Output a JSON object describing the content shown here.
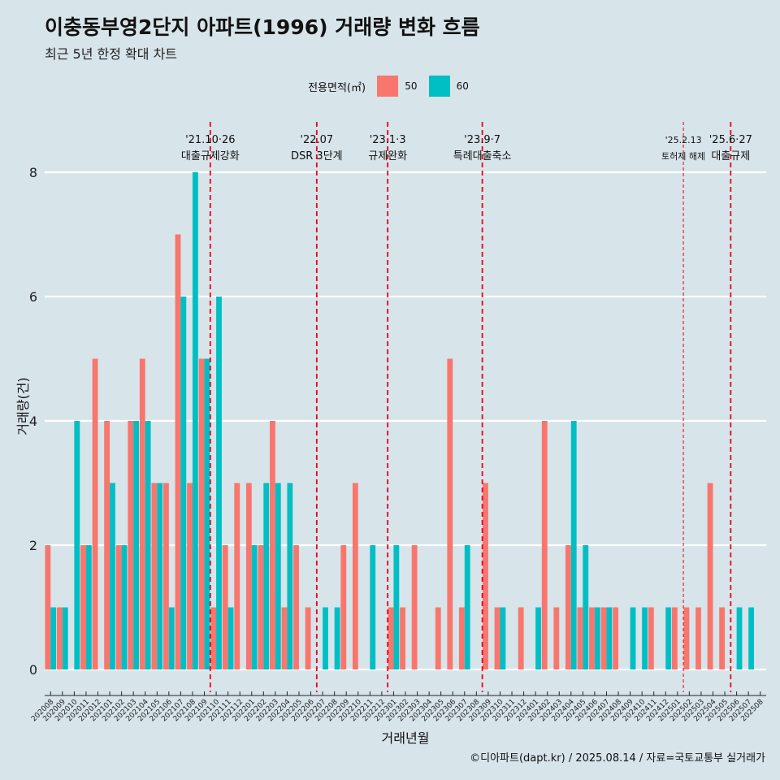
{
  "title": "이충동부영2단지 아파트(1996) 거래량 변화 흐름",
  "subtitle": "최근 5년 한정 확대 차트",
  "footer": "©디아파트(dapt.kr) / 2025.08.14 / 자료=국토교통부 실거래가",
  "colors": {
    "background": "#d7e4ea",
    "series_50": "#f8766d",
    "series_60": "#00bfc4",
    "event_line": "#e8001c",
    "grid": "#ffffff"
  },
  "chart_data": {
    "type": "bar",
    "ylabel": "거래량(건)",
    "xlabel": "거래년월",
    "ylim": [
      0,
      8
    ],
    "yticks": [
      0,
      2,
      4,
      6,
      8
    ],
    "legend_title": "전용면적(㎡)",
    "legend_position": "top",
    "categories": [
      "202008",
      "202009",
      "202010",
      "202011",
      "202012",
      "202101",
      "202102",
      "202103",
      "202104",
      "202105",
      "202106",
      "202107",
      "202108",
      "202109",
      "202110",
      "202111",
      "202112",
      "202201",
      "202202",
      "202203",
      "202204",
      "202205",
      "202206",
      "202207",
      "202208",
      "202209",
      "202210",
      "202211",
      "202212",
      "202301",
      "202302",
      "202303",
      "202304",
      "202305",
      "202306",
      "202307",
      "202308",
      "202309",
      "202310",
      "202311",
      "202312",
      "202401",
      "202402",
      "202403",
      "202404",
      "202405",
      "202406",
      "202407",
      "202408",
      "202409",
      "202410",
      "202411",
      "202412",
      "202501",
      "202502",
      "202503",
      "202504",
      "202505",
      "202506",
      "202507",
      "202508"
    ],
    "series": [
      {
        "name": "50",
        "values": [
          2,
          1,
          0,
          2,
          5,
          4,
          2,
          4,
          5,
          3,
          3,
          7,
          3,
          5,
          1,
          2,
          3,
          3,
          2,
          4,
          1,
          2,
          1,
          0,
          0,
          2,
          3,
          0,
          0,
          1,
          1,
          2,
          0,
          1,
          5,
          1,
          0,
          3,
          1,
          0,
          1,
          0,
          4,
          1,
          2,
          1,
          1,
          1,
          1,
          0,
          0,
          1,
          0,
          1,
          1,
          1,
          3,
          1,
          0,
          0,
          0
        ]
      },
      {
        "name": "60",
        "values": [
          1,
          1,
          4,
          2,
          0,
          3,
          2,
          4,
          4,
          3,
          1,
          6,
          8,
          5,
          6,
          1,
          0,
          2,
          3,
          3,
          3,
          0,
          0,
          1,
          1,
          0,
          0,
          2,
          0,
          2,
          0,
          0,
          0,
          0,
          0,
          2,
          0,
          0,
          1,
          0,
          0,
          1,
          0,
          0,
          4,
          2,
          1,
          1,
          0,
          1,
          1,
          0,
          1,
          0,
          0,
          0,
          0,
          0,
          1,
          1,
          0
        ]
      }
    ],
    "events": [
      {
        "date_label": "'21.10·26",
        "desc": "대출규제강화",
        "x_index": 14.0,
        "style": "dashed"
      },
      {
        "date_label": "'22.07",
        "desc": "DSR 3단계",
        "x_index": 23.0,
        "style": "dashed"
      },
      {
        "date_label": "'23.1·3",
        "desc": "규제완화",
        "x_index": 29.0,
        "style": "dashed"
      },
      {
        "date_label": "'23.9·7",
        "desc": "특례대출축소",
        "x_index": 37.0,
        "style": "dashed"
      },
      {
        "date_label": "'25.2.13",
        "desc": "토허제 해제",
        "x_index": 54.0,
        "style": "dashed-thin"
      },
      {
        "date_label": "'25.6·27",
        "desc": "대출규제",
        "x_index": 58.0,
        "style": "dashed"
      }
    ]
  }
}
